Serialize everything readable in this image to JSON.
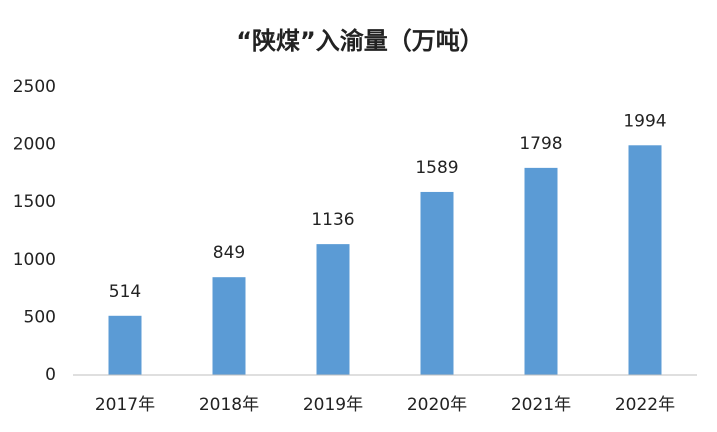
{
  "chart_data": {
    "type": "bar",
    "title": "“陕煤”入渝量（万吨）",
    "categories": [
      "2017年",
      "2018年",
      "2019年",
      "2020年",
      "2021年",
      "2022年"
    ],
    "values": [
      514,
      849,
      1136,
      1589,
      1798,
      1994
    ],
    "color": "#5b9bd5",
    "ylim": [
      0,
      2500
    ],
    "yticks": [
      0,
      500,
      1000,
      1500,
      2000,
      2500
    ],
    "grid": false
  }
}
